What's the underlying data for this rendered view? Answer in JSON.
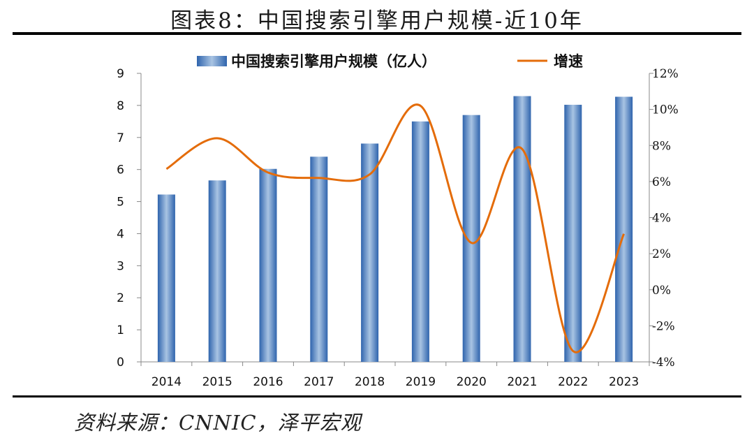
{
  "figure": {
    "title": "图表8：中国搜索引擎用户规模-近10年",
    "source": "资料来源：CNNIC，泽平宏观"
  },
  "chart_data": {
    "type": "bar",
    "categories": [
      "2014",
      "2015",
      "2016",
      "2017",
      "2018",
      "2019",
      "2020",
      "2021",
      "2022",
      "2023"
    ],
    "series": [
      {
        "name": "中国搜索引擎用户规模（亿人）",
        "type": "bar",
        "axis": "left",
        "values": [
          5.22,
          5.66,
          6.02,
          6.4,
          6.81,
          7.5,
          7.7,
          8.29,
          8.02,
          8.27
        ],
        "color": "#3d74b8"
      },
      {
        "name": "增速",
        "type": "line",
        "axis": "right",
        "values": [
          6.7,
          8.4,
          6.5,
          6.2,
          6.4,
          10.2,
          2.6,
          7.8,
          -3.4,
          3.1
        ],
        "color": "#e46c0a"
      }
    ],
    "y_left": {
      "min": 0,
      "max": 9,
      "ticks": [
        "0",
        "1",
        "2",
        "3",
        "4",
        "5",
        "6",
        "7",
        "8",
        "9"
      ]
    },
    "y_right": {
      "min": -4,
      "max": 12,
      "ticks": [
        "-4%",
        "-2%",
        "0%",
        "2%",
        "4%",
        "6%",
        "8%",
        "10%",
        "12%"
      ]
    },
    "legend": {
      "position": "top-center"
    },
    "grid": false
  }
}
